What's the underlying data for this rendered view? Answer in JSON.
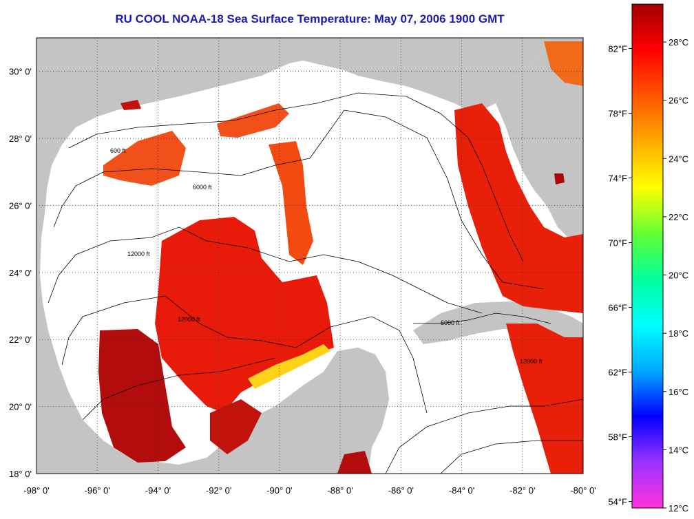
{
  "title": "RU COOL  NOAA-18  Sea Surface Temperature:  May 07, 2006 1900 GMT",
  "map": {
    "lon_range": [
      -98,
      -80
    ],
    "lat_range": [
      18,
      31
    ],
    "lon_labels": [
      "-98° 0'",
      "-96° 0'",
      "-94° 0'",
      "-92° 0'",
      "-90° 0'",
      "-88° 0'",
      "-86° 0'",
      "-84° 0'",
      "-82° 0'",
      "-80° 0'"
    ],
    "lat_labels": [
      "18° 0'",
      "20° 0'",
      "22° 0'",
      "24° 0'",
      "26° 0'",
      "28° 0'",
      "30° 0'"
    ],
    "lat_values": [
      18,
      20,
      22,
      24,
      26,
      28,
      30
    ],
    "lon_values": [
      -98,
      -96,
      -94,
      -92,
      -90,
      -88,
      -86,
      -84,
      -82,
      -80
    ],
    "fahrenheit_labels": [
      "82°F",
      "78°F",
      "74°F",
      "70°F",
      "66°F",
      "62°F",
      "58°F",
      "54°F"
    ],
    "fahrenheit_values": [
      82,
      78,
      74,
      70,
      66,
      62,
      58,
      54
    ],
    "contour_labels": [
      "600 ft",
      "6000 ft",
      "12000 ft"
    ],
    "colors": {
      "land": "#c4c4c4",
      "water": "#ffffff",
      "sst_dark": "#a80a0a",
      "sst_red": "#e81a0a",
      "sst_orange": "#f24a10",
      "title": "#1c1cb4"
    }
  },
  "colorbar": {
    "unit": "°C",
    "labels": [
      "28°C",
      "26°C",
      "24°C",
      "22°C",
      "20°C",
      "18°C",
      "16°C",
      "14°C",
      "12°C"
    ],
    "values_c": [
      28,
      26,
      24,
      22,
      20,
      18,
      16,
      14,
      12
    ],
    "range_c": [
      12,
      29.3
    ],
    "stops": [
      "#ff33dd",
      "#9933ff",
      "#0000ff",
      "#00aaff",
      "#00ffff",
      "#00ff99",
      "#66ff33",
      "#ffff00",
      "#ffaa00",
      "#ff5500",
      "#ff0000",
      "#a00000"
    ]
  }
}
